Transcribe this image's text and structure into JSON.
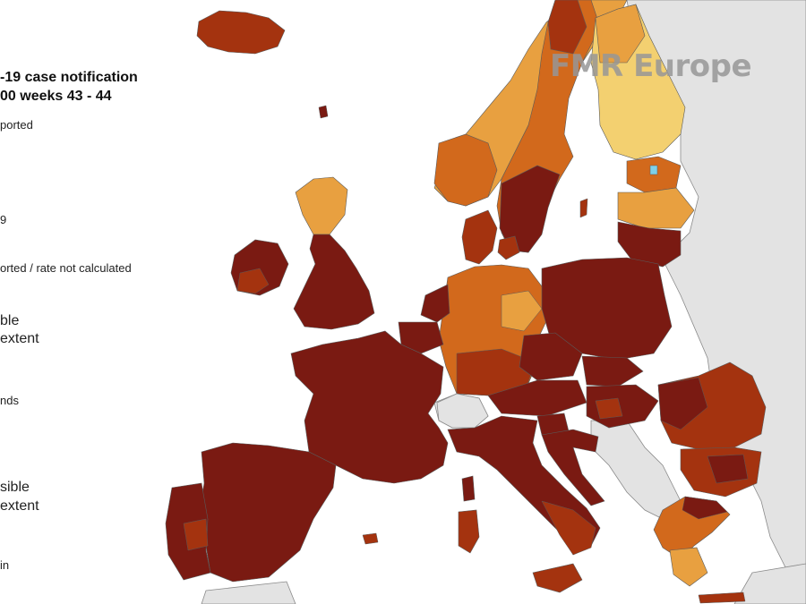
{
  "legend": {
    "title_line1": "-19 case notification",
    "title_line2": "00 weeks 43 - 44",
    "items": [
      "ported",
      "9",
      "orted / rate not calculated",
      "ble",
      "extent",
      "nds",
      "sible",
      "extent",
      "in"
    ]
  },
  "watermark": "FMR Europe",
  "colors": {
    "sea": "#ffffff",
    "non_eu": "#e3e3e3",
    "border": "#5a5a5a",
    "darkest": "#7a1a12",
    "dark": "#a4330f",
    "mid_orange": "#d2691c",
    "orange": "#e8a040",
    "light": "#f3d070",
    "very_light": "#f7e2a0",
    "cyan": "#7fd0e8"
  }
}
